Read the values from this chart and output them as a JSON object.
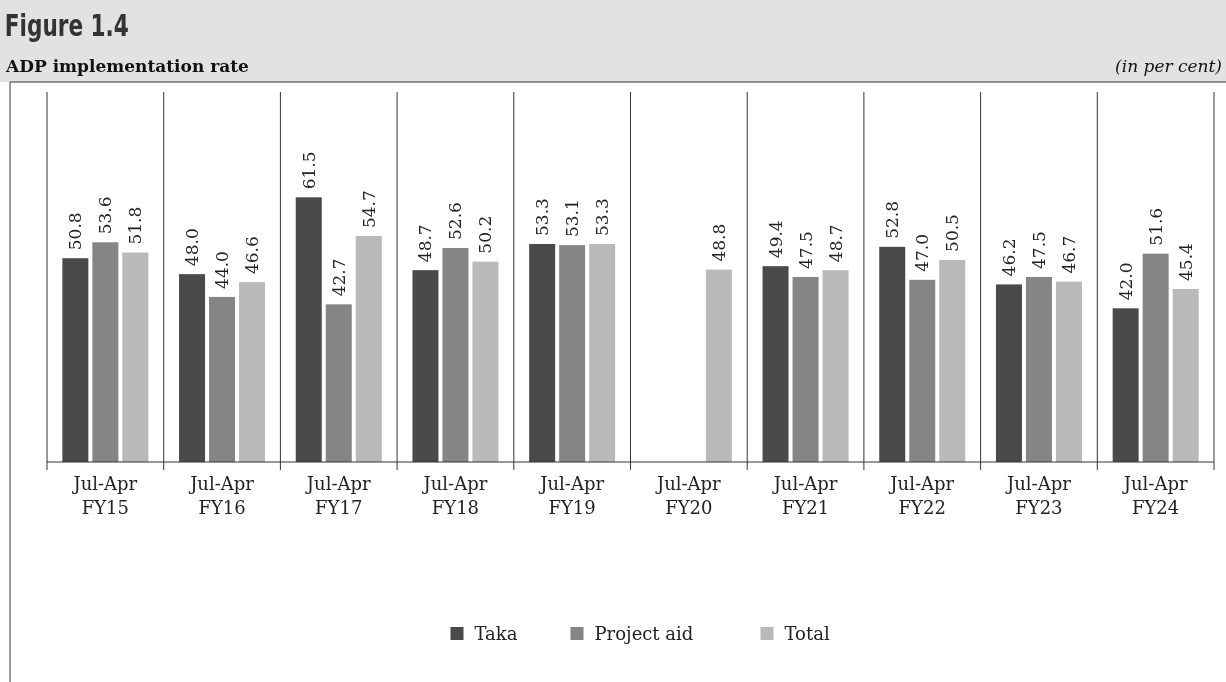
{
  "chart_data": {
    "type": "bar",
    "title": "Figure 1.4",
    "subtitle": "ADP implementation rate",
    "annotations": [
      "(in per cent)"
    ],
    "categories": [
      "Jul-Apr FY15",
      "Jul-Apr FY16",
      "Jul-Apr FY17",
      "Jul-Apr FY18",
      "Jul-Apr FY19",
      "Jul-Apr FY20",
      "Jul-Apr FY21",
      "Jul-Apr FY22",
      "Jul-Apr FY23",
      "Jul-Apr FY24"
    ],
    "series": [
      {
        "name": "Taka",
        "color": "#4a4a4c",
        "values": [
          50.8,
          48.0,
          61.5,
          48.7,
          53.3,
          null,
          49.4,
          52.8,
          46.2,
          42.0
        ],
        "value_labels": [
          "50.8",
          "48.0",
          "61.5",
          "48.7",
          "53.3",
          null,
          "49.4",
          "52.8",
          "46.2",
          "42.0"
        ]
      },
      {
        "name": "Project aid",
        "color": "#858587",
        "values": [
          53.6,
          44.0,
          42.7,
          52.6,
          53.1,
          null,
          47.5,
          47.0,
          47.5,
          51.6
        ],
        "value_labels": [
          "53.6",
          "44.0",
          "42.7",
          "52.6",
          "53.1",
          null,
          "47.5",
          "47.0",
          "47.5",
          "51.6"
        ]
      },
      {
        "name": "Total",
        "color": "#b9b9bb",
        "values": [
          51.8,
          46.6,
          54.7,
          50.2,
          53.3,
          48.8,
          48.7,
          50.5,
          46.7,
          45.4
        ],
        "value_labels": [
          "51.8",
          "46.6",
          "54.7",
          "50.2",
          "53.3",
          "48.8",
          "48.7",
          "50.5",
          "46.7",
          "45.4"
        ]
      }
    ],
    "ylim": [
      15,
      80
    ],
    "legend": "bottom"
  }
}
